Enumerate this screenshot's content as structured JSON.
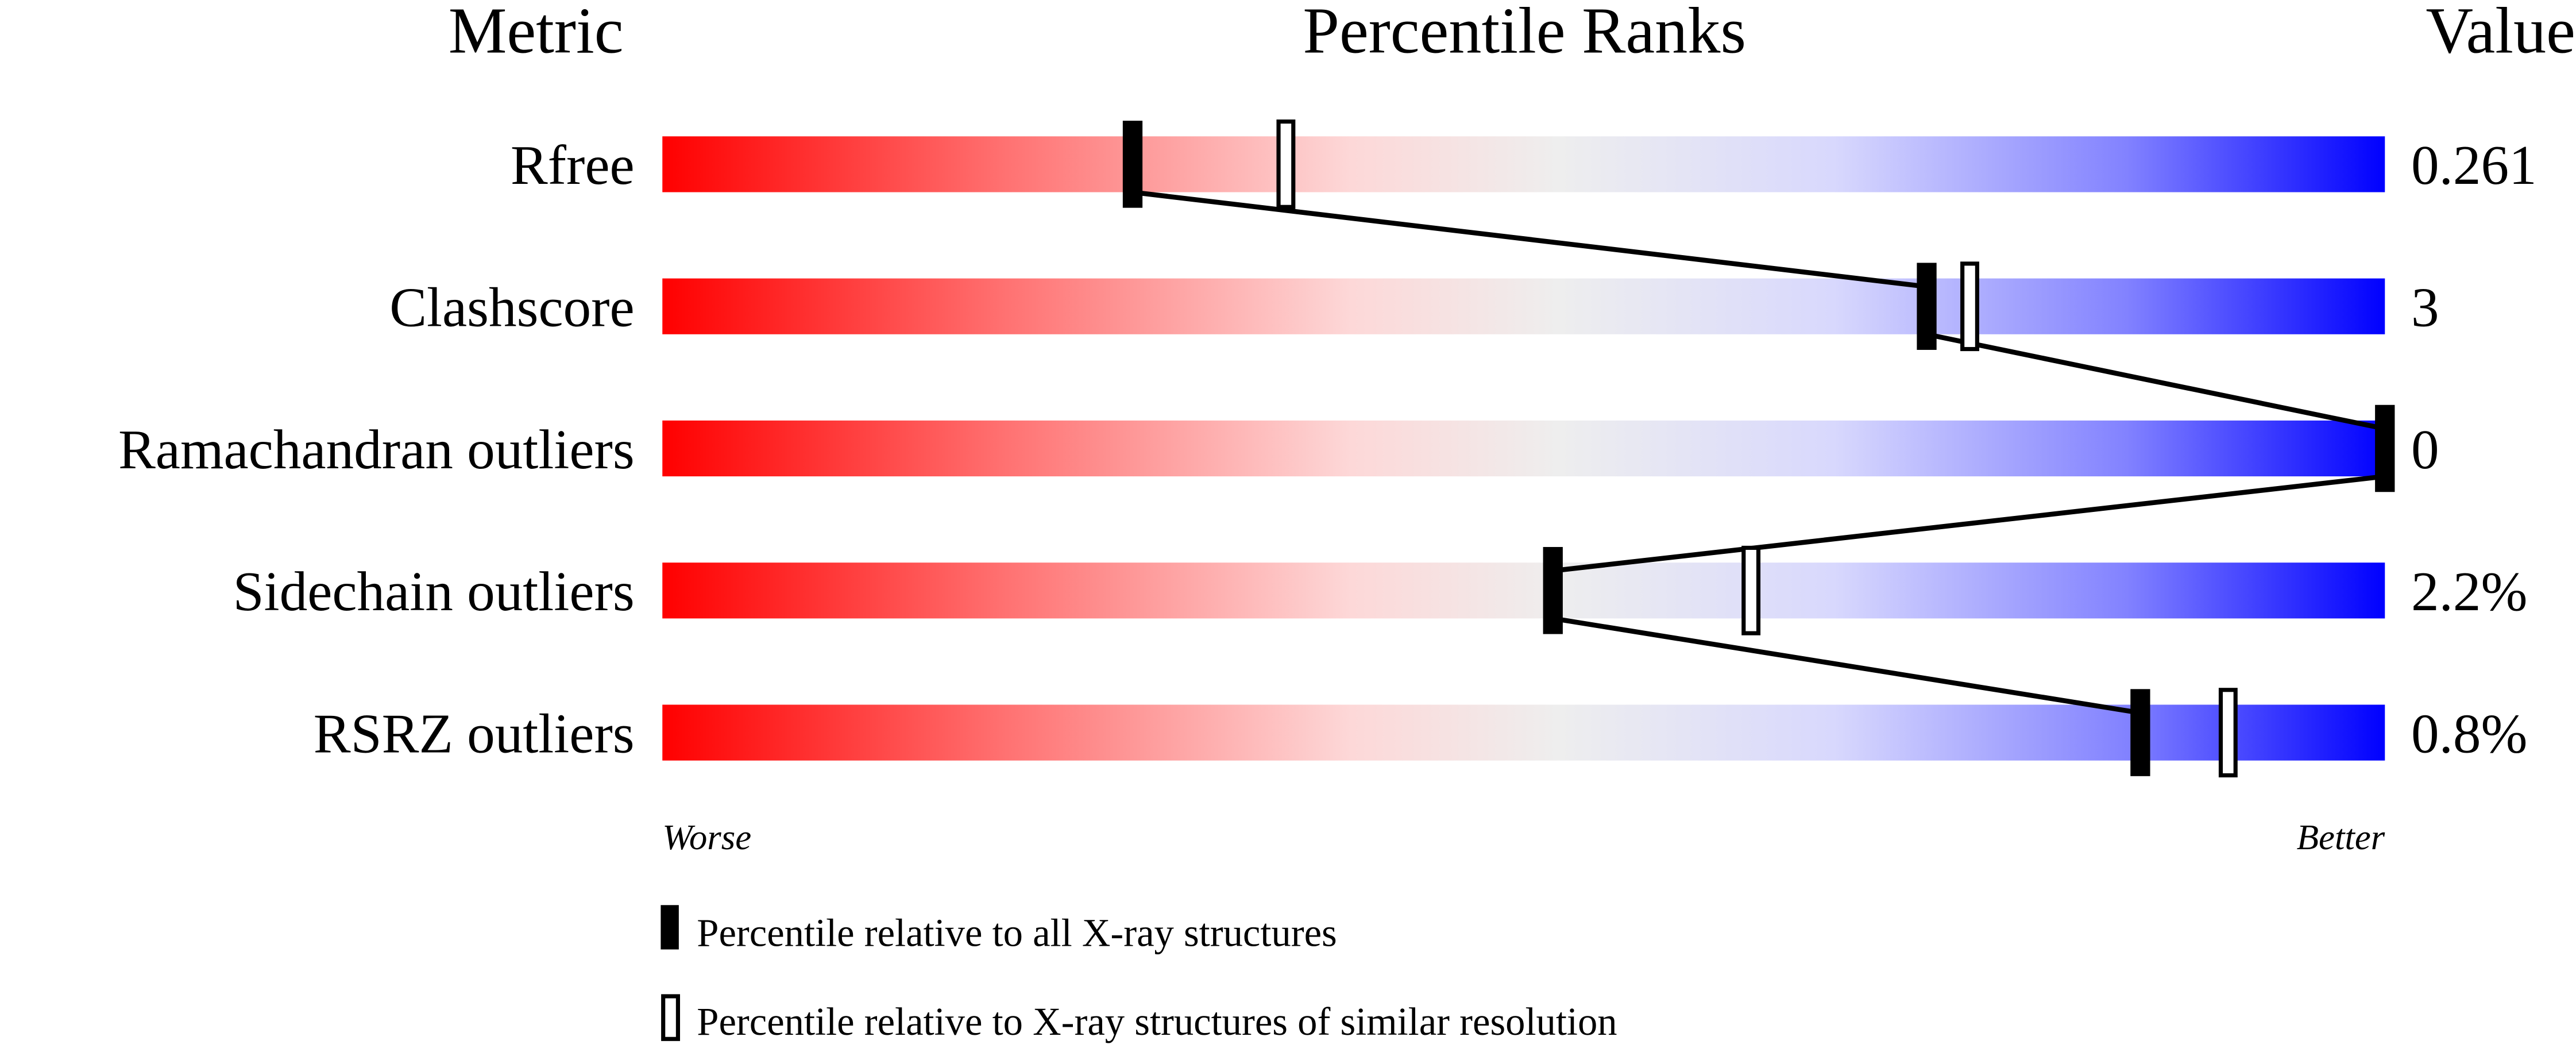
{
  "chart_data": {
    "type": "bar",
    "headers": {
      "metric": "Metric",
      "ranks": "Percentile Ranks",
      "value": "Value"
    },
    "xlim": [
      0,
      100
    ],
    "axis_labels": {
      "worse": "Worse",
      "better": "Better"
    },
    "rows": [
      {
        "metric": "Rfree",
        "value": "0.261",
        "percentile_all": 27.3,
        "percentile_similar": 36.2
      },
      {
        "metric": "Clashscore",
        "value": "3",
        "percentile_all": 73.4,
        "percentile_similar": 75.9
      },
      {
        "metric": "Ramachandran outliers",
        "value": "0",
        "percentile_all": 100,
        "percentile_similar": null
      },
      {
        "metric": "Sidechain outliers",
        "value": "2.2%",
        "percentile_all": 51.7,
        "percentile_similar": 63.2
      },
      {
        "metric": "RSRZ outliers",
        "value": "0.8%",
        "percentile_all": 85.8,
        "percentile_similar": 90.9
      }
    ],
    "legend": {
      "all": "Percentile relative to all X-ray structures",
      "similar": "Percentile relative to X-ray structures of similar resolution"
    },
    "colors": {
      "worse": "#ff0000",
      "neutral": "#eeeeee",
      "better": "#0000ff"
    }
  }
}
